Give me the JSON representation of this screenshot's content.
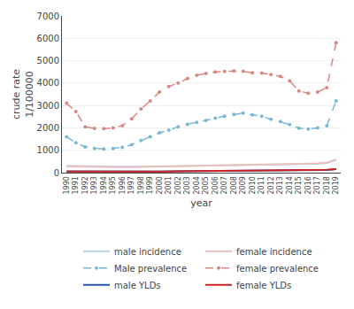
{
  "chart_data": {
    "type": "line",
    "xlabel": "year",
    "ylabel": "crude rate\n1/100000",
    "x": [
      1990,
      1991,
      1992,
      1993,
      1994,
      1995,
      1996,
      1997,
      1998,
      1999,
      2000,
      2001,
      2002,
      2003,
      2004,
      2005,
      2006,
      2007,
      2008,
      2009,
      2010,
      2011,
      2012,
      2013,
      2014,
      2015,
      2016,
      2017,
      2018,
      2019
    ],
    "xlim": [
      1989.5,
      2019.5
    ],
    "xticks": [
      1990,
      1991,
      1992,
      1993,
      1994,
      1995,
      1996,
      1997,
      1998,
      1999,
      2000,
      2001,
      2002,
      2003,
      2004,
      2005,
      2006,
      2007,
      2008,
      2009,
      2010,
      2011,
      2012,
      2013,
      2014,
      2015,
      2016,
      2017,
      2018,
      2019
    ],
    "ylim": [
      0,
      7000
    ],
    "yticks": [
      0,
      1000,
      2000,
      3000,
      4000,
      5000,
      6000,
      7000
    ],
    "grid": true,
    "legend": "bottom",
    "series": [
      {
        "name": "male incidence",
        "color": "#b8d4e8",
        "line_style": "solid",
        "values": [
          310,
          295,
          285,
          278,
          272,
          268,
          265,
          265,
          268,
          272,
          278,
          285,
          292,
          300,
          310,
          320,
          330,
          340,
          350,
          358,
          365,
          370,
          375,
          378,
          380,
          385,
          390,
          400,
          430,
          560
        ]
      },
      {
        "name": "female incidence",
        "color": "#e8c0bc",
        "line_style": "solid",
        "values": [
          280,
          270,
          262,
          255,
          250,
          248,
          246,
          248,
          252,
          258,
          266,
          275,
          285,
          295,
          308,
          318,
          330,
          342,
          355,
          365,
          372,
          378,
          382,
          385,
          388,
          393,
          400,
          412,
          445,
          590
        ]
      },
      {
        "name": "Male prevalence",
        "color": "#7ab8d4",
        "line_style": "dashed",
        "marker": "dot",
        "values": [
          1600,
          1330,
          1150,
          1090,
          1060,
          1080,
          1130,
          1250,
          1430,
          1600,
          1780,
          1900,
          2050,
          2160,
          2240,
          2330,
          2430,
          2520,
          2600,
          2660,
          2580,
          2520,
          2380,
          2280,
          2150,
          1990,
          1950,
          2000,
          2100,
          3200
        ]
      },
      {
        "name": "female prevalence",
        "color": "#d48a82",
        "line_style": "dashed",
        "marker": "dot",
        "values": [
          3100,
          2730,
          2050,
          1980,
          1970,
          2000,
          2100,
          2400,
          2850,
          3200,
          3600,
          3850,
          4000,
          4200,
          4350,
          4430,
          4500,
          4520,
          4540,
          4530,
          4460,
          4450,
          4380,
          4300,
          4100,
          3650,
          3550,
          3600,
          3800,
          5800
        ]
      },
      {
        "name": "male YLDs",
        "color": "#2255aa",
        "line_style": "solid",
        "values": [
          55,
          52,
          50,
          48,
          47,
          46,
          46,
          47,
          48,
          50,
          53,
          56,
          59,
          63,
          67,
          71,
          76,
          81,
          86,
          91,
          95,
          98,
          100,
          102,
          103,
          105,
          108,
          112,
          122,
          155
        ]
      },
      {
        "name": "female YLDs",
        "color": "#cc2222",
        "line_style": "solid",
        "values": [
          48,
          46,
          44,
          43,
          42,
          42,
          42,
          43,
          45,
          47,
          50,
          53,
          57,
          61,
          65,
          70,
          75,
          80,
          86,
          91,
          95,
          98,
          100,
          102,
          103,
          105,
          108,
          113,
          124,
          160
        ]
      }
    ]
  }
}
